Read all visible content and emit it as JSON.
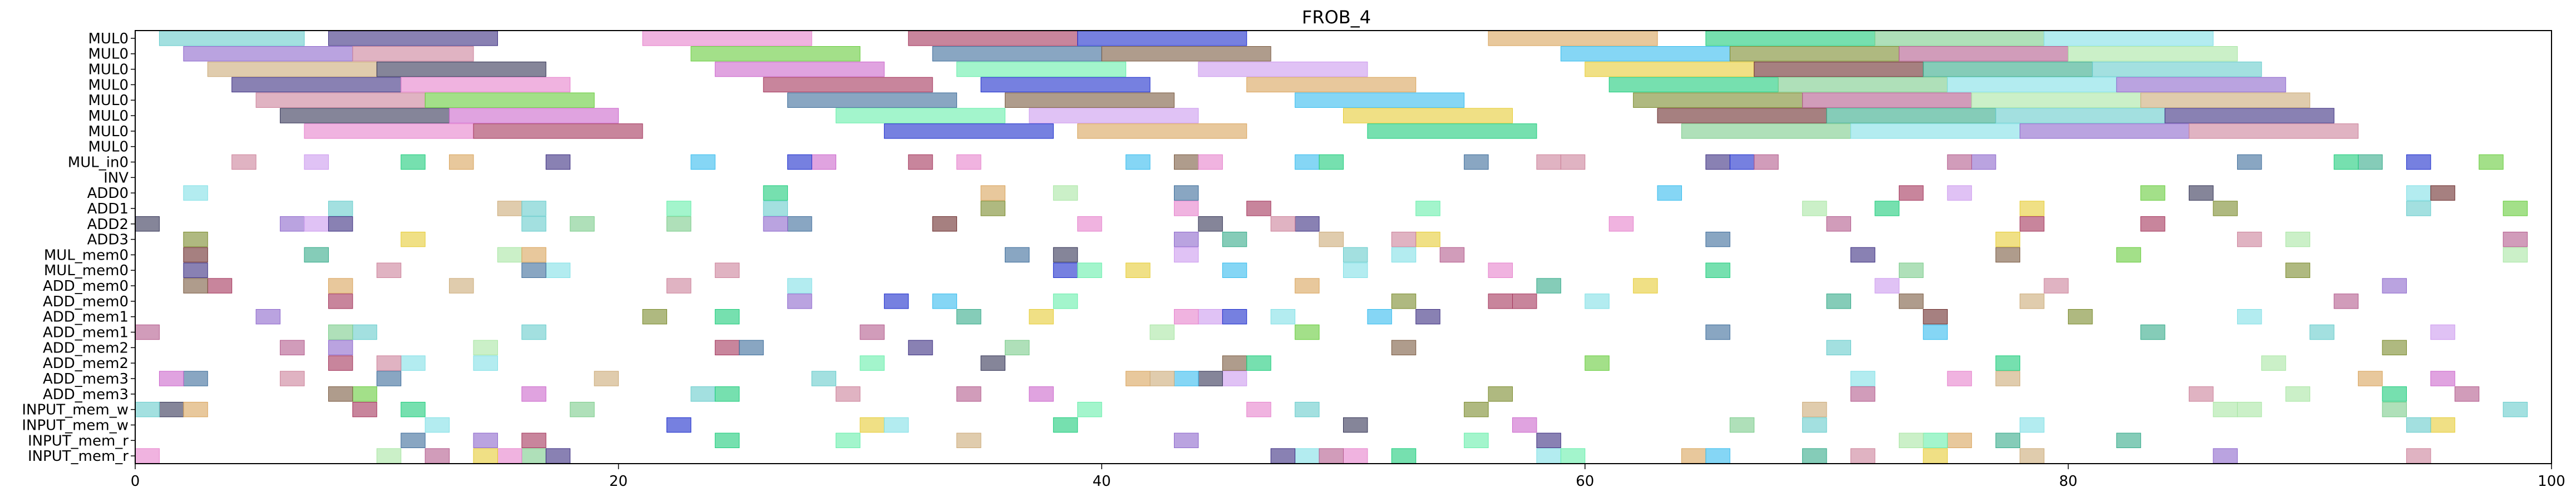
{
  "chart_data": {
    "type": "gantt",
    "title": "FROB_4",
    "xlabel": "",
    "ylabel": "",
    "xlim": [
      0,
      100
    ],
    "x_ticks": [
      0,
      20,
      40,
      60,
      80,
      100
    ],
    "grid": false,
    "rows": [
      "MUL0",
      "MUL0",
      "MUL0",
      "MUL0",
      "MUL0",
      "MUL0",
      "MUL0",
      "MUL0",
      "MUL_in0",
      "INV",
      "ADD0",
      "ADD1",
      "ADD2",
      "ADD3",
      "MUL_mem0",
      "MUL_mem0",
      "ADD_mem0",
      "ADD_mem0",
      "ADD_mem1",
      "ADD_mem1",
      "ADD_mem2",
      "ADD_mem2",
      "ADD_mem3",
      "ADD_mem3",
      "INPUT_mem_w",
      "INPUT_mem_w",
      "INPUT_mem_r",
      "INPUT_mem_r"
    ],
    "long_tasks": [
      {
        "row": 0,
        "segments": [
          [
            1,
            7
          ],
          [
            8,
            15
          ],
          [
            21,
            28
          ],
          [
            32,
            39
          ],
          [
            39,
            46
          ],
          [
            56,
            63
          ],
          [
            65,
            72
          ],
          [
            72,
            79
          ],
          [
            79,
            86
          ]
        ]
      },
      {
        "row": 1,
        "segments": [
          [
            2,
            9
          ],
          [
            9,
            14
          ],
          [
            23,
            30
          ],
          [
            33,
            40
          ],
          [
            40,
            47
          ],
          [
            59,
            66
          ],
          [
            66,
            73
          ],
          [
            73,
            80
          ],
          [
            80,
            87
          ]
        ]
      },
      {
        "row": 2,
        "segments": [
          [
            3,
            10
          ],
          [
            10,
            17
          ],
          [
            24,
            31
          ],
          [
            34,
            41
          ],
          [
            44,
            51
          ],
          [
            60,
            67
          ],
          [
            67,
            74
          ],
          [
            74,
            81
          ],
          [
            81,
            88
          ]
        ]
      },
      {
        "row": 3,
        "segments": [
          [
            4,
            11
          ],
          [
            11,
            18
          ],
          [
            26,
            33
          ],
          [
            35,
            42
          ],
          [
            46,
            53
          ],
          [
            61,
            68
          ],
          [
            68,
            75
          ],
          [
            75,
            82
          ],
          [
            82,
            89
          ]
        ]
      },
      {
        "row": 4,
        "segments": [
          [
            5,
            12
          ],
          [
            12,
            19
          ],
          [
            27,
            34
          ],
          [
            36,
            43
          ],
          [
            48,
            55
          ],
          [
            62,
            69
          ],
          [
            69,
            76
          ],
          [
            76,
            83
          ],
          [
            83,
            90
          ]
        ]
      },
      {
        "row": 5,
        "segments": [
          [
            6,
            13
          ],
          [
            13,
            20
          ],
          [
            29,
            36
          ],
          [
            37,
            44
          ],
          [
            50,
            57
          ],
          [
            63,
            70
          ],
          [
            70,
            77
          ],
          [
            77,
            84
          ],
          [
            84,
            91
          ]
        ]
      },
      {
        "row": 6,
        "segments": [
          [
            7,
            14
          ],
          [
            14,
            21
          ],
          [
            31,
            38
          ],
          [
            39,
            46
          ],
          [
            51,
            58
          ],
          [
            64,
            71
          ],
          [
            71,
            78
          ],
          [
            78,
            85
          ],
          [
            85,
            92
          ]
        ]
      }
    ],
    "short_task_unit": 1,
    "short_task_count_per_row": [
      28,
      0,
      12,
      15,
      18,
      12,
      14,
      14,
      12,
      13,
      14,
      12,
      10,
      11,
      16,
      14,
      15,
      12,
      14,
      22,
      20
    ]
  },
  "colors": {
    "axis": "#000000",
    "background": "#ffffff",
    "palette": [
      "#66cccc",
      "#3b2d80",
      "#e680cc",
      "#a3335a",
      "#1a2bcc",
      "#d9a35a",
      "#1acc7a",
      "#7acc8a",
      "#80e0e6",
      "#8c66cc",
      "#cc8099",
      "#66cc3b",
      "#3b6b99",
      "#7a5a40",
      "#33bbee",
      "#7a8a2b",
      "#b35a8c",
      "#a8e6a3",
      "#ccaa77",
      "#333355",
      "#cc66cc",
      "#66eeaa",
      "#cc99ee",
      "#e6cc33",
      "#6b2b2b",
      "#33aa88"
    ]
  }
}
